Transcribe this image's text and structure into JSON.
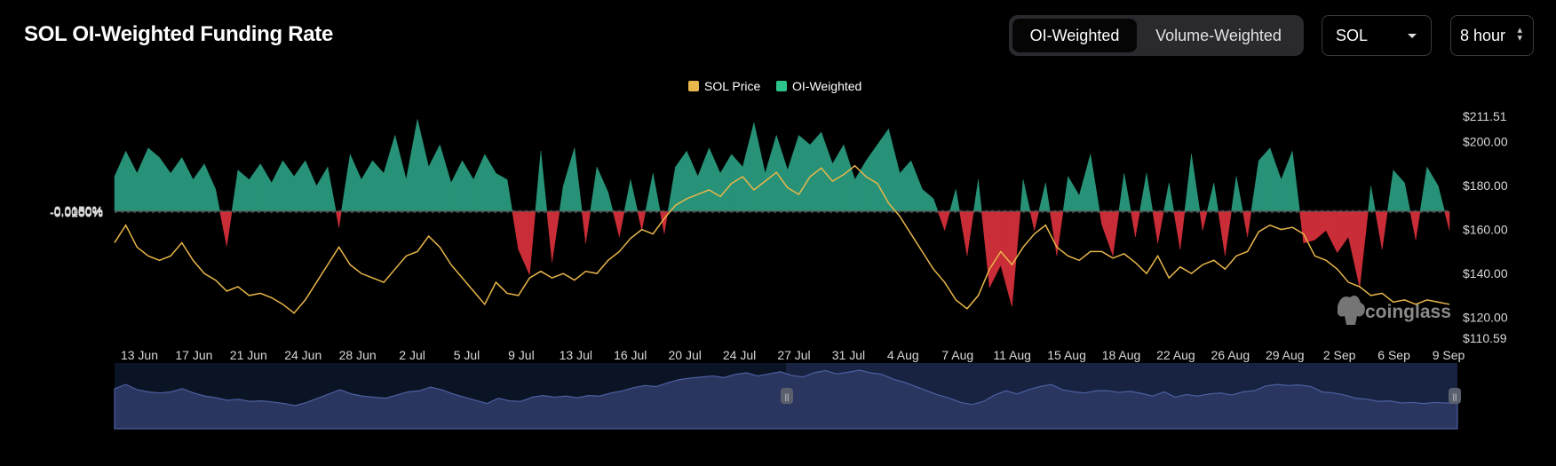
{
  "header": {
    "title": "SOL OI-Weighted Funding Rate"
  },
  "toggle": {
    "options": [
      "OI-Weighted",
      "Volume-Weighted"
    ],
    "active": "OI-Weighted"
  },
  "coin_select": {
    "value": "SOL",
    "icon": "chevron-down-icon"
  },
  "interval_select": {
    "value": "8 hour",
    "icon": "updown-icon"
  },
  "legend": {
    "price": "SOL Price",
    "rate": "OI-Weighted"
  },
  "watermark": "coinglass",
  "colors": {
    "positive": "#2a9a7e",
    "negative": "#d4303a",
    "price": "#e8b64a",
    "navigator": "#4d5fa0",
    "grid": "#3a3a3a"
  },
  "chart_data": {
    "type": "area",
    "x_tick_labels": [
      "13 Jun",
      "17 Jun",
      "21 Jun",
      "24 Jun",
      "28 Jun",
      "2 Jul",
      "5 Jul",
      "9 Jul",
      "13 Jul",
      "16 Jul",
      "20 Jul",
      "24 Jul",
      "27 Jul",
      "31 Jul",
      "4 Aug",
      "7 Aug",
      "11 Aug",
      "15 Aug",
      "18 Aug",
      "22 Aug",
      "26 Aug",
      "29 Aug",
      "2 Sep",
      "6 Sep",
      "9 Sep"
    ],
    "left_axis_labels": [
      "0.0150%",
      "0.0100%",
      "0.0050%",
      "0%",
      "-0.0050%",
      "-0.0100%",
      "-0.0150%",
      "-0.0200%"
    ],
    "left_axis_range": [
      -0.02,
      0.015
    ],
    "right_axis_labels": [
      "$211.51",
      "$200.00",
      "$180.00",
      "$160.00",
      "$140.00",
      "$120.00",
      "$110.59"
    ],
    "right_axis_range": [
      110.59,
      211.51
    ],
    "series": [
      {
        "name": "OI-Weighted",
        "unit": "%",
        "points": [
          [
            0,
            0.0055
          ],
          [
            1,
            0.0095
          ],
          [
            2,
            0.006
          ],
          [
            3,
            0.01
          ],
          [
            4,
            0.0085
          ],
          [
            5,
            0.006
          ],
          [
            6,
            0.0085
          ],
          [
            7,
            0.005
          ],
          [
            8,
            0.0075
          ],
          [
            9,
            0.0035
          ],
          [
            10,
            -0.0055
          ],
          [
            11,
            0.0065
          ],
          [
            12,
            0.005
          ],
          [
            13,
            0.0075
          ],
          [
            14,
            0.0045
          ],
          [
            15,
            0.008
          ],
          [
            16,
            0.0055
          ],
          [
            17,
            0.008
          ],
          [
            18,
            0.004
          ],
          [
            19,
            0.007
          ],
          [
            20,
            -0.0025
          ],
          [
            21,
            0.009
          ],
          [
            22,
            0.005
          ],
          [
            23,
            0.008
          ],
          [
            24,
            0.006
          ],
          [
            25,
            0.012
          ],
          [
            26,
            0.005
          ],
          [
            27,
            0.0145
          ],
          [
            28,
            0.007
          ],
          [
            29,
            0.0105
          ],
          [
            30,
            0.0045
          ],
          [
            31,
            0.008
          ],
          [
            32,
            0.005
          ],
          [
            33,
            0.009
          ],
          [
            34,
            0.006
          ],
          [
            35,
            0.005
          ],
          [
            36,
            -0.006
          ],
          [
            37,
            -0.01
          ],
          [
            38,
            0.0095
          ],
          [
            39,
            -0.008
          ],
          [
            40,
            0.004
          ],
          [
            41,
            0.01
          ],
          [
            42,
            -0.005
          ],
          [
            43,
            0.007
          ],
          [
            44,
            0.003
          ],
          [
            45,
            -0.004
          ],
          [
            46,
            0.005
          ],
          [
            47,
            -0.003
          ],
          [
            48,
            0.006
          ],
          [
            49,
            -0.0035
          ],
          [
            50,
            0.007
          ],
          [
            51,
            0.0095
          ],
          [
            52,
            0.0055
          ],
          [
            53,
            0.01
          ],
          [
            54,
            0.006
          ],
          [
            55,
            0.009
          ],
          [
            56,
            0.007
          ],
          [
            57,
            0.014
          ],
          [
            58,
            0.006
          ],
          [
            59,
            0.012
          ],
          [
            60,
            0.0065
          ],
          [
            61,
            0.012
          ],
          [
            62,
            0.0105
          ],
          [
            63,
            0.0125
          ],
          [
            64,
            0.0075
          ],
          [
            65,
            0.0105
          ],
          [
            66,
            0.005
          ],
          [
            67,
            0.008
          ],
          [
            68,
            0.0105
          ],
          [
            69,
            0.013
          ],
          [
            70,
            0.006
          ],
          [
            71,
            0.008
          ],
          [
            72,
            0.0035
          ],
          [
            73,
            0.002
          ],
          [
            74,
            -0.003
          ],
          [
            75,
            0.0035
          ],
          [
            76,
            -0.007
          ],
          [
            77,
            0.005
          ],
          [
            78,
            -0.012
          ],
          [
            79,
            -0.0085
          ],
          [
            80,
            -0.015
          ],
          [
            81,
            0.005
          ],
          [
            82,
            -0.003
          ],
          [
            83,
            0.0045
          ],
          [
            84,
            -0.007
          ],
          [
            85,
            0.0055
          ],
          [
            86,
            0.0025
          ],
          [
            87,
            0.009
          ],
          [
            88,
            -0.002
          ],
          [
            89,
            -0.007
          ],
          [
            90,
            0.006
          ],
          [
            91,
            -0.004
          ],
          [
            92,
            0.006
          ],
          [
            93,
            -0.005
          ],
          [
            94,
            0.0045
          ],
          [
            95,
            -0.006
          ],
          [
            96,
            0.009
          ],
          [
            97,
            -0.003
          ],
          [
            98,
            0.0045
          ],
          [
            99,
            -0.007
          ],
          [
            100,
            0.0055
          ],
          [
            101,
            -0.004
          ],
          [
            102,
            0.008
          ],
          [
            103,
            0.01
          ],
          [
            104,
            0.005
          ],
          [
            105,
            0.0095
          ],
          [
            106,
            -0.005
          ],
          [
            107,
            -0.0045
          ],
          [
            108,
            -0.003
          ],
          [
            109,
            -0.0065
          ],
          [
            110,
            -0.004
          ],
          [
            111,
            -0.012
          ],
          [
            112,
            0.004
          ],
          [
            113,
            -0.006
          ],
          [
            114,
            0.0065
          ],
          [
            115,
            0.0045
          ],
          [
            116,
            -0.0045
          ],
          [
            117,
            0.007
          ],
          [
            118,
            0.004
          ],
          [
            119,
            -0.003
          ]
        ]
      },
      {
        "name": "SOL Price",
        "unit": "USD",
        "points": [
          [
            0,
            154
          ],
          [
            1,
            162
          ],
          [
            2,
            152
          ],
          [
            3,
            148
          ],
          [
            4,
            146
          ],
          [
            5,
            148
          ],
          [
            6,
            154
          ],
          [
            7,
            146
          ],
          [
            8,
            140
          ],
          [
            9,
            137
          ],
          [
            10,
            132
          ],
          [
            11,
            134
          ],
          [
            12,
            130
          ],
          [
            13,
            131
          ],
          [
            14,
            129
          ],
          [
            15,
            126
          ],
          [
            16,
            122
          ],
          [
            17,
            128
          ],
          [
            18,
            136
          ],
          [
            19,
            144
          ],
          [
            20,
            152
          ],
          [
            21,
            144
          ],
          [
            22,
            140
          ],
          [
            23,
            138
          ],
          [
            24,
            136
          ],
          [
            25,
            142
          ],
          [
            26,
            148
          ],
          [
            27,
            150
          ],
          [
            28,
            157
          ],
          [
            29,
            152
          ],
          [
            30,
            144
          ],
          [
            31,
            138
          ],
          [
            32,
            132
          ],
          [
            33,
            126
          ],
          [
            34,
            136
          ],
          [
            35,
            131
          ],
          [
            36,
            130
          ],
          [
            37,
            138
          ],
          [
            38,
            141
          ],
          [
            39,
            138
          ],
          [
            40,
            140
          ],
          [
            41,
            137
          ],
          [
            42,
            141
          ],
          [
            43,
            140
          ],
          [
            44,
            146
          ],
          [
            45,
            150
          ],
          [
            46,
            156
          ],
          [
            47,
            160
          ],
          [
            48,
            158
          ],
          [
            49,
            165
          ],
          [
            50,
            171
          ],
          [
            51,
            174
          ],
          [
            52,
            176
          ],
          [
            53,
            178
          ],
          [
            54,
            175
          ],
          [
            55,
            181
          ],
          [
            56,
            184
          ],
          [
            57,
            178
          ],
          [
            58,
            182
          ],
          [
            59,
            186
          ],
          [
            60,
            179
          ],
          [
            61,
            176
          ],
          [
            62,
            184
          ],
          [
            63,
            188
          ],
          [
            64,
            182
          ],
          [
            65,
            185
          ],
          [
            66,
            189
          ],
          [
            67,
            184
          ],
          [
            68,
            181
          ],
          [
            69,
            172
          ],
          [
            70,
            166
          ],
          [
            71,
            158
          ],
          [
            72,
            150
          ],
          [
            73,
            142
          ],
          [
            74,
            136
          ],
          [
            75,
            128
          ],
          [
            76,
            124
          ],
          [
            77,
            130
          ],
          [
            78,
            142
          ],
          [
            79,
            150
          ],
          [
            80,
            144
          ],
          [
            81,
            152
          ],
          [
            82,
            158
          ],
          [
            83,
            162
          ],
          [
            84,
            152
          ],
          [
            85,
            148
          ],
          [
            86,
            146
          ],
          [
            87,
            150
          ],
          [
            88,
            150
          ],
          [
            89,
            147
          ],
          [
            90,
            149
          ],
          [
            91,
            145
          ],
          [
            92,
            140
          ],
          [
            93,
            148
          ],
          [
            94,
            138
          ],
          [
            95,
            143
          ],
          [
            96,
            140
          ],
          [
            97,
            144
          ],
          [
            98,
            146
          ],
          [
            99,
            142
          ],
          [
            100,
            148
          ],
          [
            101,
            150
          ],
          [
            102,
            159
          ],
          [
            103,
            162
          ],
          [
            104,
            160
          ],
          [
            105,
            161
          ],
          [
            106,
            158
          ],
          [
            107,
            148
          ],
          [
            108,
            146
          ],
          [
            109,
            142
          ],
          [
            110,
            136
          ],
          [
            111,
            134
          ],
          [
            112,
            130
          ],
          [
            113,
            131
          ],
          [
            114,
            127
          ],
          [
            115,
            128
          ],
          [
            116,
            126
          ],
          [
            117,
            128
          ],
          [
            118,
            127
          ],
          [
            119,
            126
          ]
        ]
      }
    ],
    "grid": true,
    "legend_position": "top-center"
  }
}
